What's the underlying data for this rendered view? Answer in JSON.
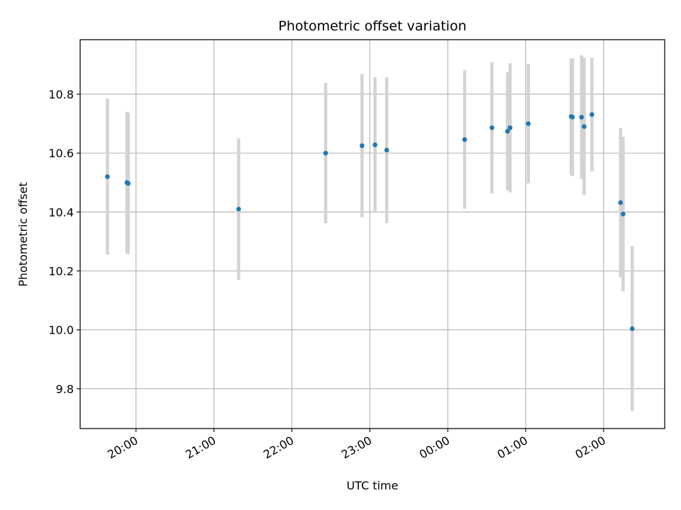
{
  "chart_data": {
    "type": "scatter",
    "title": "Photometric offset variation",
    "xlabel": "UTC time",
    "ylabel": "Photometric offset",
    "grid": true,
    "x_ticks": [
      "20:00",
      "21:00",
      "22:00",
      "23:00",
      "00:00",
      "01:00",
      "02:00"
    ],
    "y_ticks": [
      "9.8",
      "10.0",
      "10.2",
      "10.4",
      "10.6",
      "10.8"
    ],
    "xlim": [
      "19:17",
      "02:47"
    ],
    "ylim": [
      9.665,
      10.985
    ],
    "colors": {
      "point": "#1f77b4",
      "errorbar": "#d3d3d3",
      "grid": "#b0b0b0"
    },
    "points": [
      {
        "x": "19:38",
        "y": 10.52,
        "yerr": 0.265
      },
      {
        "x": "19:53",
        "y": 10.5,
        "yerr": 0.24
      },
      {
        "x": "19:54",
        "y": 10.497,
        "yerr": 0.24
      },
      {
        "x": "21:19",
        "y": 10.41,
        "yerr": 0.24
      },
      {
        "x": "22:26",
        "y": 10.6,
        "yerr": 0.238
      },
      {
        "x": "22:54",
        "y": 10.625,
        "yerr": 0.243
      },
      {
        "x": "23:04",
        "y": 10.628,
        "yerr": 0.23
      },
      {
        "x": "23:13",
        "y": 10.61,
        "yerr": 0.248
      },
      {
        "x": "00:13",
        "y": 10.646,
        "yerr": 0.235
      },
      {
        "x": "00:34",
        "y": 10.686,
        "yerr": 0.223
      },
      {
        "x": "00:46",
        "y": 10.674,
        "yerr": 0.2
      },
      {
        "x": "00:48",
        "y": 10.686,
        "yerr": 0.219
      },
      {
        "x": "01:02",
        "y": 10.7,
        "yerr": 0.203
      },
      {
        "x": "01:35",
        "y": 10.724,
        "yerr": 0.197
      },
      {
        "x": "01:36",
        "y": 10.722,
        "yerr": 0.2
      },
      {
        "x": "01:43",
        "y": 10.722,
        "yerr": 0.21
      },
      {
        "x": "01:45",
        "y": 10.69,
        "yerr": 0.233
      },
      {
        "x": "01:51",
        "y": 10.731,
        "yerr": 0.193
      },
      {
        "x": "02:13",
        "y": 10.432,
        "yerr": 0.253
      },
      {
        "x": "02:15",
        "y": 10.393,
        "yerr": 0.262
      },
      {
        "x": "02:22",
        "y": 10.004,
        "yerr": 0.28
      }
    ]
  }
}
